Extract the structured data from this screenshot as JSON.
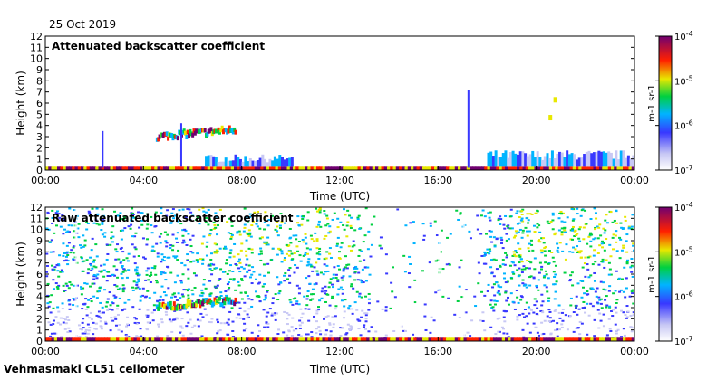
{
  "header": {
    "date": "25 Oct 2019"
  },
  "footer": {
    "instrument": "Vehmasmaki CL51 ceilometer"
  },
  "chart_data": [
    {
      "type": "heatmap",
      "title": "Attenuated backscatter coefficient",
      "xlabel": "Time (UTC)",
      "ylabel": "Height (km)",
      "xlim": [
        0,
        24
      ],
      "ylim": [
        0,
        12
      ],
      "x_ticks": [
        "00:00",
        "04:00",
        "08:00",
        "12:00",
        "16:00",
        "20:00",
        "00:00"
      ],
      "y_ticks": [
        "0",
        "1",
        "2",
        "3",
        "4",
        "5",
        "6",
        "7",
        "8",
        "9",
        "10",
        "11",
        "12"
      ],
      "colorbar": {
        "scale": "log",
        "range": [
          1e-07,
          0.0001
        ],
        "tick_labels": [
          "10-7",
          "10-6",
          "10-5",
          "10-4"
        ],
        "unit": "m-1 sr-1"
      },
      "features": [
        {
          "kind": "surface_layer",
          "t0": 0,
          "t1": 24,
          "h": 0.3
        },
        {
          "kind": "boundary_layer",
          "t0": 6.5,
          "t1": 10,
          "h": 1.4
        },
        {
          "kind": "boundary_layer",
          "t0": 18,
          "t1": 24,
          "h": 1.8
        },
        {
          "kind": "cloud_layer",
          "t0": 4.5,
          "t1": 7.7,
          "h": 3.2
        },
        {
          "kind": "cloud_column",
          "t": 2.3,
          "h0": 0.2,
          "h1": 3.5
        },
        {
          "kind": "cloud_column",
          "t": 5.5,
          "h0": 0.3,
          "h1": 4.2
        },
        {
          "kind": "cloud_column",
          "t": 17.2,
          "h0": 0.2,
          "h1": 7.2
        },
        {
          "kind": "cloud_patch",
          "t": 20.5,
          "h": 4.7
        },
        {
          "kind": "cloud_patch",
          "t": 20.7,
          "h": 6.3
        }
      ]
    },
    {
      "type": "heatmap",
      "title": "Raw attenuated backscatter coefficient",
      "xlabel": "Time (UTC)",
      "ylabel": "Height (km)",
      "xlim": [
        0,
        24
      ],
      "ylim": [
        0,
        12
      ],
      "x_ticks": [
        "00:00",
        "04:00",
        "08:00",
        "12:00",
        "16:00",
        "20:00",
        "00:00"
      ],
      "y_ticks": [
        "0",
        "1",
        "2",
        "3",
        "4",
        "5",
        "6",
        "7",
        "8",
        "9",
        "10",
        "11",
        "12"
      ],
      "colorbar": {
        "scale": "log",
        "range": [
          1e-07,
          0.0001
        ],
        "tick_labels": [
          "10-7",
          "10-6",
          "10-5",
          "10-4"
        ],
        "unit": "m-1 sr-1"
      },
      "features": [
        {
          "kind": "noise_field",
          "t0": 0,
          "t1": 24,
          "h0": 0,
          "h1": 12
        },
        {
          "kind": "cloud_layer",
          "t0": 4.5,
          "t1": 7.7,
          "h": 3.2
        },
        {
          "kind": "surface_layer",
          "t0": 0,
          "t1": 24,
          "h": 0.3
        }
      ]
    }
  ]
}
